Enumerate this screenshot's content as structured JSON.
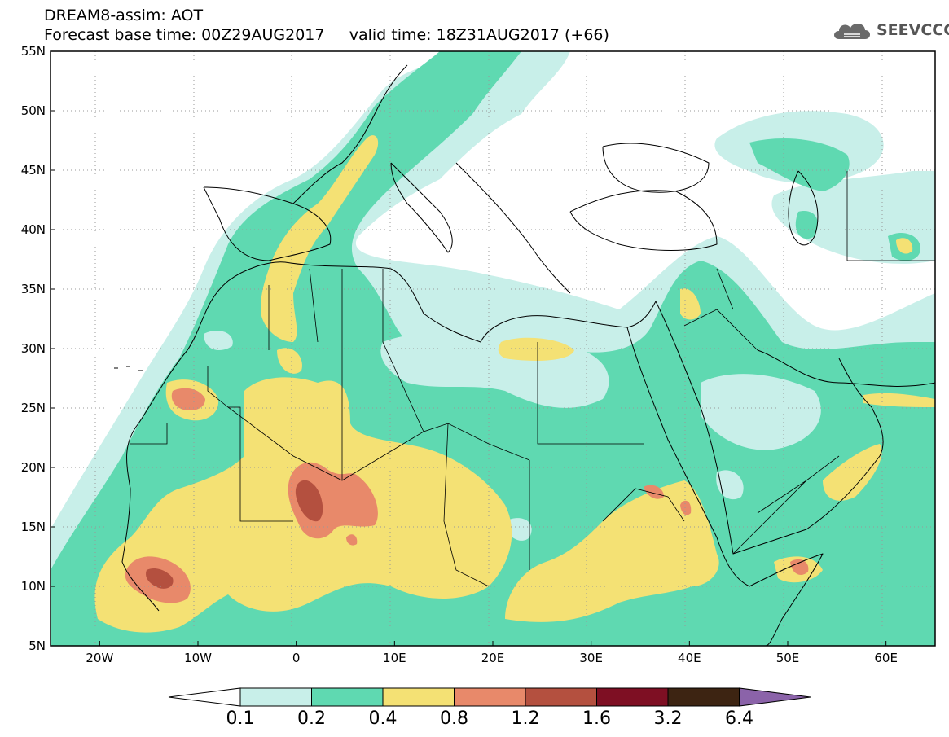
{
  "header": {
    "title": "DREAM8-assim: AOT",
    "forecast_base": "Forecast base time: 00Z29AUG2017",
    "valid_time": "valid time: 18Z31AUG2017 (+66)"
  },
  "logo": {
    "text": "SEEVCCC",
    "icon": "cloud-icon"
  },
  "map": {
    "lon_range": [
      -25,
      65
    ],
    "lat_range": [
      5,
      55
    ],
    "lon_ticks": [
      "20W",
      "10W",
      "0",
      "10E",
      "20E",
      "30E",
      "40E",
      "50E",
      "60E"
    ],
    "lat_ticks": [
      "55N",
      "50N",
      "45N",
      "40N",
      "35N",
      "30N",
      "25N",
      "20N",
      "15N",
      "10N",
      "5N"
    ],
    "grid": "dotted"
  },
  "legend": {
    "levels": [
      "0.1",
      "0.2",
      "0.4",
      "0.8",
      "1.2",
      "1.6",
      "3.2",
      "6.4"
    ],
    "colors": [
      "#ffffff",
      "#c8efe9",
      "#5fd9b1",
      "#f4e174",
      "#e8896a",
      "#b4503f",
      "#7e0f23",
      "#3d2412",
      "#8b63a9"
    ]
  },
  "colors": {
    "land_bg": "#5fd9b1",
    "ocean_low": "#c8efe9",
    "dust_yellow": "#f4e174",
    "dust_orange": "#e8896a",
    "dust_red": "#b4503f",
    "border": "#000000"
  }
}
